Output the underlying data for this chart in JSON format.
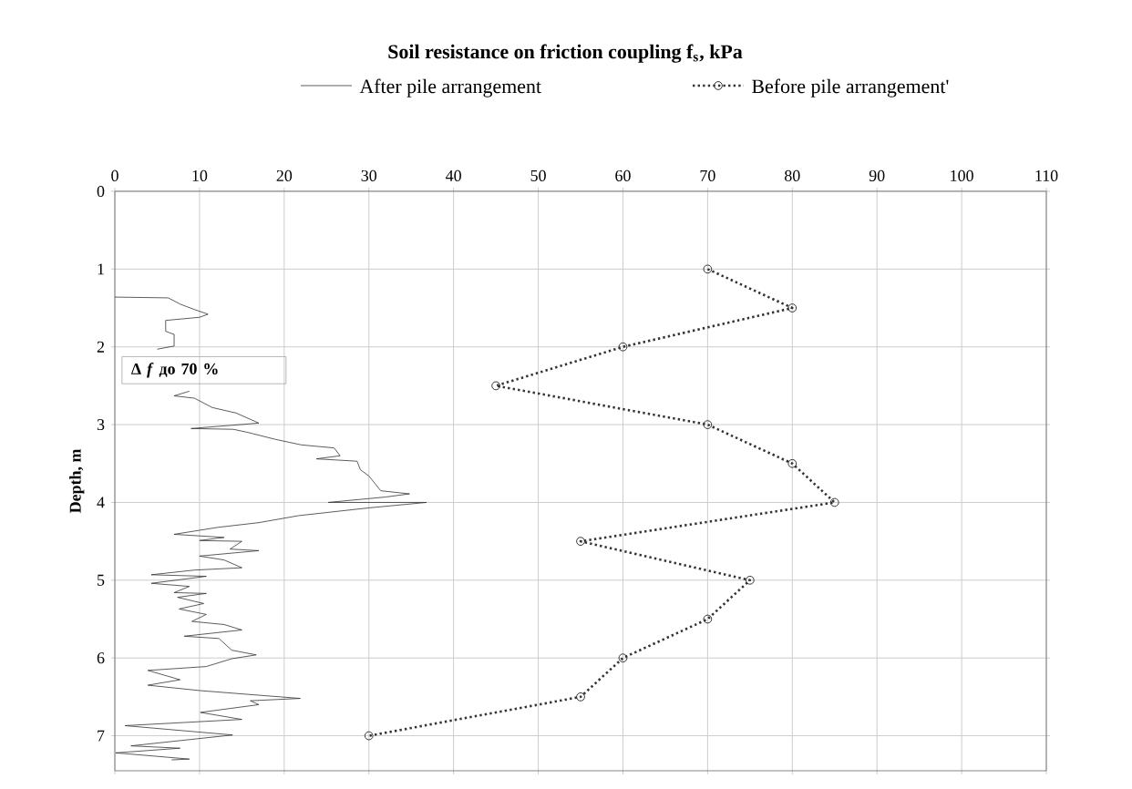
{
  "chart_data": {
    "type": "line",
    "title": "Soil resistance on friction coupling f$_{s}$, kPa",
    "ylabel": "Depth, m",
    "annotations": [
      "Δ *f* до 70 %"
    ],
    "xlim": [
      0,
      110
    ],
    "xticks": [
      0,
      10,
      20,
      30,
      40,
      50,
      60,
      70,
      80,
      90,
      100,
      110
    ],
    "ylim": [
      7.45,
      0
    ],
    "yticks": [
      0,
      1,
      2,
      3,
      4,
      5,
      6,
      7
    ],
    "grid": true,
    "legend": "top",
    "series": [
      {
        "name": "After pile arrangement",
        "color": "#333333",
        "line_style": "solid",
        "marker": "none",
        "x": [
          0,
          6.3,
          7.7,
          9.4,
          11,
          10,
          6,
          6,
          7,
          7,
          5,
          null,
          8.8,
          7,
          9.4,
          11.5,
          14.3,
          17,
          13.6,
          9,
          14,
          15.7,
          19,
          22,
          25.9,
          26.6,
          23.8,
          28.6,
          29,
          30,
          31.4,
          34.8,
          32,
          25.2,
          36.8,
          30,
          21.7,
          17,
          12.2,
          7,
          12.9,
          10,
          15,
          13.6,
          17,
          10,
          12.9,
          15,
          9.4,
          4.3,
          10.8,
          4.3,
          8.8,
          7,
          10.8,
          7.4,
          10.5,
          7.6,
          10.8,
          9.1,
          12.9,
          15,
          8.2,
          12.3,
          13.8,
          16.7,
          13.8,
          10.8,
          3.9,
          7.7,
          3.9,
          10.1,
          21.9,
          16,
          17,
          10.1,
          15,
          1.2,
          13.9,
          1.9,
          7.7,
          0.1,
          8.8,
          6.7
        ],
        "values": [
          1.36,
          1.37,
          1.45,
          1.52,
          1.58,
          1.62,
          1.66,
          1.8,
          1.84,
          1.99,
          2.03,
          null,
          2.57,
          2.63,
          2.66,
          2.78,
          2.85,
          2.98,
          3.01,
          3.05,
          3.06,
          3.1,
          3.19,
          3.26,
          3.3,
          3.4,
          3.44,
          3.47,
          3.58,
          3.66,
          3.85,
          3.89,
          3.93,
          4.0,
          4.0,
          4.07,
          4.17,
          4.26,
          4.32,
          4.41,
          4.45,
          4.49,
          4.5,
          4.6,
          4.62,
          4.69,
          4.74,
          4.84,
          4.87,
          4.93,
          4.95,
          5.04,
          5.08,
          5.16,
          5.17,
          5.22,
          5.3,
          5.37,
          5.44,
          5.53,
          5.57,
          5.64,
          5.72,
          5.75,
          5.9,
          5.96,
          6.01,
          6.11,
          6.16,
          6.28,
          6.35,
          6.42,
          6.52,
          6.55,
          6.6,
          6.7,
          6.79,
          6.87,
          6.99,
          7.13,
          7.16,
          7.22,
          7.3,
          7.31
        ]
      },
      {
        "name": "Before pile arrangement'",
        "color": "#333333",
        "line_style": "dotted",
        "marker": "circle",
        "x": [
          70,
          80,
          60,
          45,
          70,
          80,
          85,
          55,
          75,
          70,
          60,
          55,
          30
        ],
        "values": [
          1.0,
          1.5,
          2.0,
          2.5,
          3.0,
          3.5,
          4.0,
          4.5,
          5.0,
          5.5,
          6.0,
          6.5,
          7.0
        ]
      }
    ]
  }
}
